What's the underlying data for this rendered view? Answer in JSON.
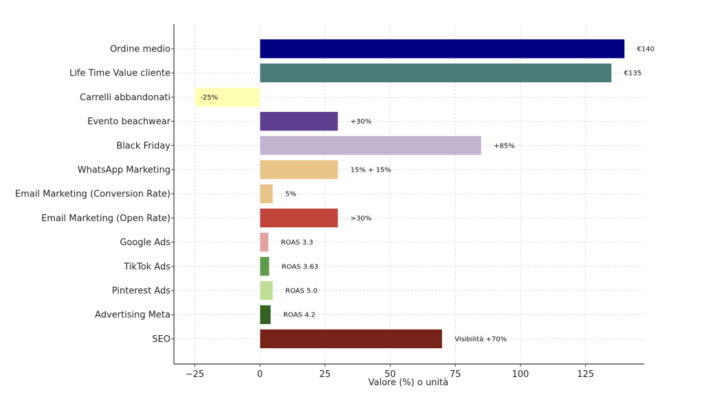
{
  "chart_data": {
    "type": "bar",
    "orientation": "horizontal",
    "title": "",
    "xlabel": "Valore (%) o unità",
    "ylabel": "",
    "xlim": [
      -33,
      147.5
    ],
    "xticks": [
      -25,
      0,
      25,
      50,
      75,
      100,
      125
    ],
    "xtick_labels": [
      "−25",
      "0",
      "25",
      "50",
      "75",
      "100",
      "125"
    ],
    "grid": true,
    "categories": [
      "Ordine medio",
      "Life Time Value cliente",
      "Carrelli abbandonati",
      "Evento beachwear",
      "Black Friday",
      "WhatsApp Marketing",
      "Email Marketing (Conversion Rate)",
      "Email Marketing (Open Rate)",
      "Google Ads",
      "TikTok Ads",
      "Pinterest Ads",
      "Advertising Meta",
      "SEO"
    ],
    "values": [
      140,
      135,
      -25,
      30,
      85,
      30,
      5,
      30,
      3.3,
      3.63,
      5.0,
      4.2,
      70
    ],
    "data_labels": [
      "€140",
      "€135",
      "-25%",
      "+30%",
      "+85%",
      "15% + 15%",
      "5%",
      ">30%",
      "ROAS 3.3",
      "ROAS 3.63",
      "ROAS 5.0",
      "ROAS 4.2",
      "Visibilità +70%"
    ],
    "colors": [
      "#000080",
      "#4a7b79",
      "#ffffb3",
      "#5e3f8f",
      "#c2b3d1",
      "#e9c489",
      "#e9c489",
      "#c0443a",
      "#e4a19e",
      "#5f9b4b",
      "#c0de98",
      "#33611f",
      "#76231a"
    ]
  }
}
